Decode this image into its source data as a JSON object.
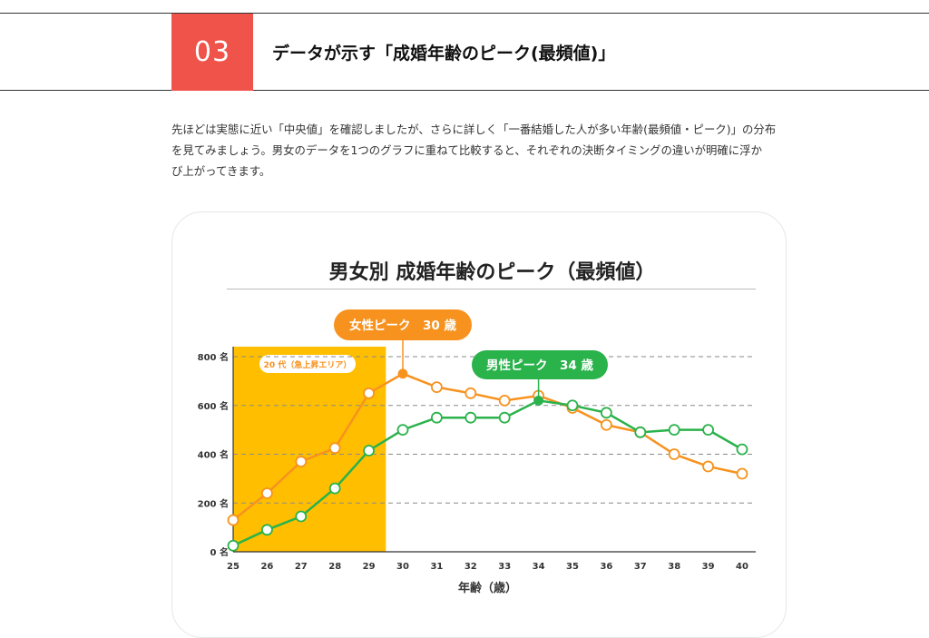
{
  "section": {
    "number": "03",
    "title": "データが示す「成婚年齢のピーク(最頻値)」"
  },
  "intro": {
    "lines": [
      "先ほどは実態に近い「中央値」を確認しましたが、さらに詳しく「一番結婚した人が多い年齢(最頻値・ピーク)」の分布",
      "を見てみましょう。男女のデータを1つのグラフに重ねて比較すると、それぞれの決断タイミングの違いが明確に浮か",
      "び上がってきます。"
    ]
  },
  "chart_data": {
    "type": "line",
    "title": "男女別 成婚年齢のピーク（最頻値）",
    "xlabel": "年齢（歳）",
    "ylabel": "",
    "x": [
      25,
      26,
      27,
      28,
      29,
      30,
      31,
      32,
      33,
      34,
      35,
      36,
      37,
      38,
      39,
      40
    ],
    "ylim": [
      0,
      800
    ],
    "yticks": [
      0,
      200,
      400,
      600,
      800
    ],
    "ytick_labels": [
      "0 名",
      "200 名",
      "400 名",
      "600 名",
      "800 名"
    ],
    "grid": "horizontal-dashed",
    "series": [
      {
        "name": "女性",
        "color": "#f7921e",
        "values": [
          130,
          240,
          370,
          425,
          650,
          730,
          675,
          650,
          620,
          640,
          590,
          520,
          490,
          400,
          350,
          320
        ],
        "peak_x": 30
      },
      {
        "name": "男性",
        "color": "#2ab24b",
        "values": [
          25,
          90,
          145,
          260,
          415,
          500,
          550,
          550,
          550,
          620,
          600,
          570,
          490,
          500,
          500,
          420
        ],
        "peak_x": 34
      }
    ],
    "highlight": {
      "x_from": 25,
      "x_to": 29.5,
      "color": "#ffbf00",
      "label": "20 代（急上昇エリア）"
    },
    "annotations": [
      {
        "text": "女性ピーク　30 歳",
        "x": 30,
        "series": "女性",
        "color": "#f7921e"
      },
      {
        "text": "男性ピーク　34 歳",
        "x": 34,
        "series": "男性",
        "color": "#2ab24b"
      }
    ]
  }
}
